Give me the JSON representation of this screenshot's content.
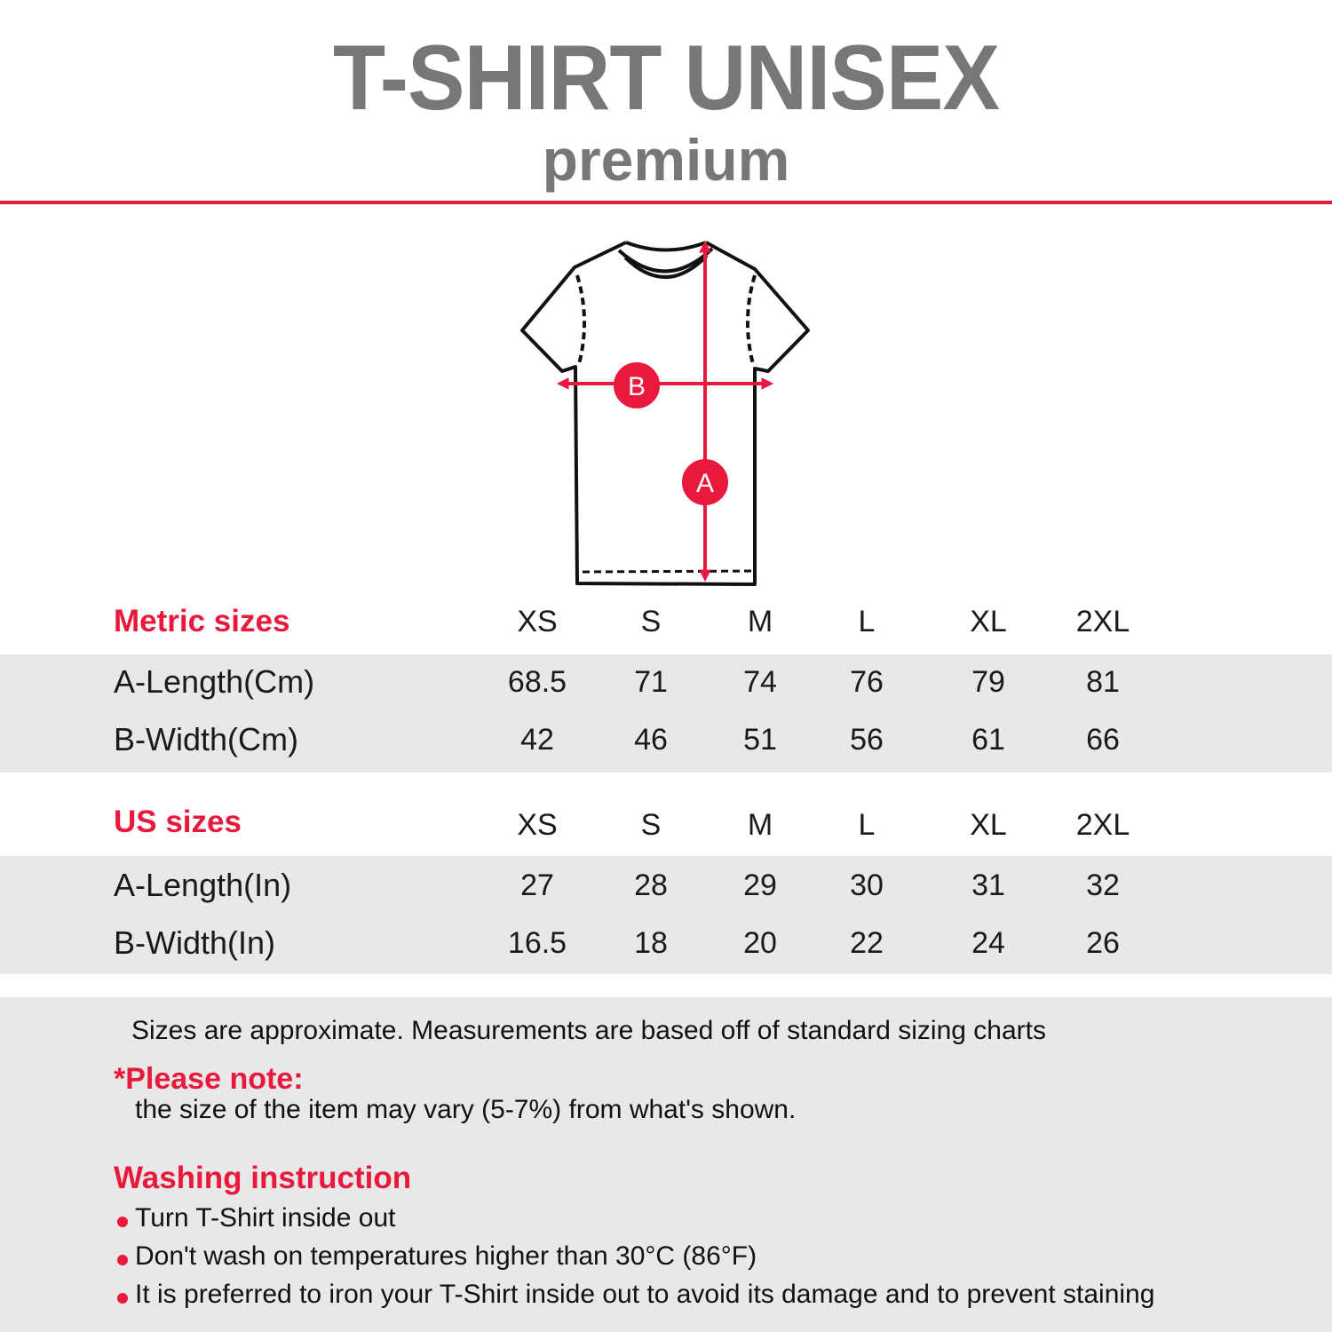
{
  "header": {
    "title": "T-SHIRT UNISEX",
    "subtitle": "premium"
  },
  "diagram": {
    "label_a": "A",
    "label_b": "B",
    "accent_color": "#e8193c"
  },
  "metric": {
    "heading": "Metric sizes",
    "sizes": [
      "XS",
      "S",
      "M",
      "L",
      "XL",
      "2XL"
    ],
    "rows": [
      {
        "label": "A-Length(Cm)",
        "values": [
          "68.5",
          "71",
          "74",
          "76",
          "79",
          "81"
        ]
      },
      {
        "label": "B-Width(Cm)",
        "values": [
          "42",
          "46",
          "51",
          "56",
          "61",
          "66"
        ]
      }
    ]
  },
  "us": {
    "heading": "US sizes",
    "sizes": [
      "XS",
      "S",
      "M",
      "L",
      "XL",
      "2XL"
    ],
    "rows": [
      {
        "label": "A-Length(In)",
        "values": [
          "27",
          "28",
          "29",
          "30",
          "31",
          "32"
        ]
      },
      {
        "label": "B-Width(In)",
        "values": [
          "16.5",
          "18",
          "20",
          "22",
          "24",
          "26"
        ]
      }
    ]
  },
  "notes": {
    "approx": "Sizes are approximate. Measurements are based off of standard sizing charts",
    "please_note_heading": "*Please note:",
    "please_note_text": "the size of the item may vary (5-7%) from what's shown."
  },
  "washing": {
    "heading": "Washing instruction",
    "items": [
      "Turn T-Shirt inside out",
      "Don't wash on temperatures higher than 30°C (86°F)",
      "It is preferred to iron your T-Shirt inside out to avoid its damage and to prevent staining"
    ]
  }
}
